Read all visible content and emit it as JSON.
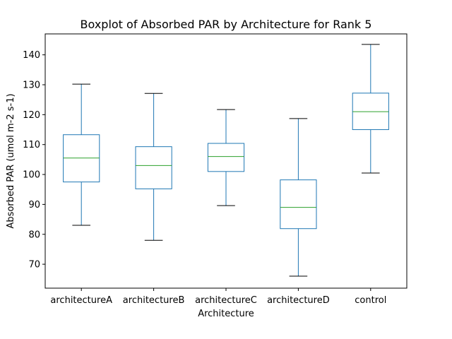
{
  "chart_data": {
    "type": "box",
    "title": "Boxplot of Absorbed PAR by Architecture for Rank 5",
    "xlabel": "Architecture",
    "ylabel": "Absorbed PAR (umol m-2 s-1)",
    "ylim": [
      62,
      147
    ],
    "yticks": [
      70,
      80,
      90,
      100,
      110,
      120,
      130,
      140
    ],
    "grid": false,
    "categories": [
      "architectureA",
      "architectureB",
      "architectureC",
      "architectureD",
      "control"
    ],
    "boxes": [
      {
        "whisker_low": 83.0,
        "q1": 97.5,
        "median": 105.5,
        "q3": 113.3,
        "whisker_high": 130.2
      },
      {
        "whisker_low": 78.0,
        "q1": 95.2,
        "median": 103.0,
        "q3": 109.3,
        "whisker_high": 127.1
      },
      {
        "whisker_low": 89.6,
        "q1": 101.0,
        "median": 106.0,
        "q3": 110.4,
        "whisker_high": 121.7
      },
      {
        "whisker_low": 66.0,
        "q1": 81.9,
        "median": 89.0,
        "q3": 98.2,
        "whisker_high": 118.7
      },
      {
        "whisker_low": 100.5,
        "q1": 115.0,
        "median": 121.0,
        "q3": 127.2,
        "whisker_high": 143.5
      }
    ],
    "colors": {
      "box": "#1f77b4",
      "median": "#2ca02c",
      "whisker_cap": "#000000",
      "axis": "#000000"
    }
  }
}
